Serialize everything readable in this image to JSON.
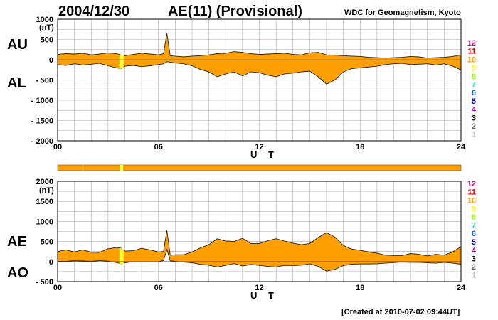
{
  "header": {
    "date": "2004/12/30",
    "title": "AE(11) (Provisional)",
    "org": "WDC for Geomagnetism, Kyoto"
  },
  "footer": {
    "created": "[Created at 2010-07-02 09:44UT]"
  },
  "level_legend": {
    "labels": [
      "12",
      "11",
      "10",
      "9",
      "8",
      "7",
      "6",
      "5",
      "4",
      "3",
      "2",
      "1"
    ],
    "colors": [
      "#e6007e",
      "#e60000",
      "#ff9900",
      "#ffff00",
      "#99ff00",
      "#00e6e6",
      "#0066ff",
      "#0000cc",
      "#cc00cc",
      "#000000",
      "#666666",
      "#cccccc"
    ]
  },
  "colors": {
    "fill": "#ffa000",
    "line": "#222222",
    "grid": "#aaaaaa",
    "bar": "#ffa000",
    "highlight": "#ffff33"
  },
  "chart_data": [
    {
      "type": "area",
      "panel": "AU/AL",
      "title": "AE(11) (Provisional)",
      "xlabel": "U T",
      "ylabel": "(nT)",
      "series_labels": {
        "upper": "AU",
        "lower": "AL"
      },
      "xlim": [
        0,
        24
      ],
      "ylim": [
        -2000,
        1000
      ],
      "xticks": [
        0,
        6,
        12,
        18,
        24
      ],
      "xtick_labels": [
        "00",
        "06",
        "12",
        "18",
        "24"
      ],
      "yticks": [
        1000,
        500,
        0,
        -500,
        -1000,
        -1500,
        -2000
      ],
      "ytick_labels": [
        "1000",
        "500",
        "0",
        "- 500",
        "- 1000",
        "- 1500",
        "- 2000"
      ],
      "x": [
        0,
        0.5,
        1,
        1.5,
        2,
        2.5,
        3,
        3.5,
        3.8,
        4,
        4.5,
        5,
        5.5,
        6,
        6.3,
        6.5,
        6.7,
        7,
        7.5,
        8,
        8.5,
        9,
        9.5,
        10,
        10.5,
        11,
        11.5,
        12,
        12.5,
        13,
        13.5,
        14,
        14.5,
        15,
        15.5,
        16,
        16.5,
        17,
        17.5,
        18,
        18.5,
        19,
        19.5,
        20,
        20.5,
        21,
        21.5,
        22,
        22.5,
        23,
        23.5,
        24
      ],
      "series": [
        {
          "name": "AU",
          "values": [
            130,
            150,
            140,
            160,
            120,
            140,
            170,
            150,
            110,
            100,
            130,
            160,
            140,
            120,
            150,
            650,
            100,
            90,
            70,
            90,
            100,
            120,
            150,
            160,
            200,
            180,
            150,
            130,
            140,
            150,
            160,
            130,
            120,
            170,
            180,
            120,
            110,
            100,
            90,
            80,
            60,
            50,
            40,
            50,
            60,
            80,
            70,
            40,
            50,
            60,
            80,
            120
          ]
        },
        {
          "name": "AL",
          "values": [
            -120,
            -140,
            -100,
            -130,
            -110,
            -90,
            -150,
            -200,
            -220,
            -160,
            -140,
            -170,
            -150,
            -120,
            -100,
            -50,
            -60,
            -80,
            -100,
            -150,
            -240,
            -300,
            -420,
            -350,
            -300,
            -400,
            -300,
            -320,
            -380,
            -420,
            -350,
            -330,
            -300,
            -280,
            -420,
            -600,
            -500,
            -300,
            -220,
            -200,
            -180,
            -160,
            -120,
            -100,
            -90,
            -120,
            -110,
            -100,
            -130,
            -100,
            -160,
            -250
          ]
        }
      ]
    },
    {
      "type": "area",
      "panel": "AE/AO",
      "xlabel": "U T",
      "ylabel": "(nT)",
      "series_labels": {
        "upper": "AE",
        "lower": "AO"
      },
      "xlim": [
        0,
        24
      ],
      "ylim": [
        -500,
        2000
      ],
      "xticks": [
        0,
        6,
        12,
        18,
        24
      ],
      "xtick_labels": [
        "00",
        "06",
        "12",
        "18",
        "24"
      ],
      "yticks": [
        2000,
        1500,
        1000,
        500,
        0,
        -500
      ],
      "ytick_labels": [
        "2000",
        "1500",
        "1000",
        "500",
        "0",
        "- 500"
      ],
      "x": [
        0,
        0.5,
        1,
        1.5,
        2,
        2.5,
        3,
        3.5,
        3.8,
        4,
        4.5,
        5,
        5.5,
        6,
        6.3,
        6.5,
        6.7,
        7,
        7.5,
        8,
        8.5,
        9,
        9.5,
        10,
        10.5,
        11,
        11.5,
        12,
        12.5,
        13,
        13.5,
        14,
        14.5,
        15,
        15.5,
        16,
        16.5,
        17,
        17.5,
        18,
        18.5,
        19,
        19.5,
        20,
        20.5,
        21,
        21.5,
        22,
        22.5,
        23,
        23.5,
        24
      ],
      "series": [
        {
          "name": "AE",
          "values": [
            250,
            290,
            240,
            290,
            230,
            230,
            320,
            350,
            330,
            260,
            270,
            330,
            290,
            240,
            250,
            780,
            160,
            170,
            170,
            240,
            340,
            420,
            570,
            510,
            500,
            580,
            450,
            450,
            520,
            570,
            510,
            460,
            420,
            450,
            600,
            720,
            610,
            400,
            310,
            280,
            240,
            210,
            160,
            150,
            150,
            200,
            180,
            140,
            180,
            160,
            240,
            370
          ]
        },
        {
          "name": "AO",
          "values": [
            5,
            5,
            20,
            15,
            5,
            25,
            10,
            -25,
            -55,
            -30,
            -5,
            -5,
            -5,
            0,
            25,
            300,
            20,
            5,
            -15,
            -30,
            -70,
            -90,
            -135,
            -95,
            -50,
            -110,
            -75,
            -95,
            -120,
            -135,
            -95,
            -100,
            -90,
            -55,
            -120,
            -240,
            -195,
            -100,
            -65,
            -60,
            -60,
            -55,
            -40,
            -25,
            -15,
            -20,
            -20,
            -30,
            -40,
            -20,
            -40,
            -65
          ]
        }
      ],
      "status_bar": {
        "highlight_hour": 3.8
      }
    }
  ]
}
